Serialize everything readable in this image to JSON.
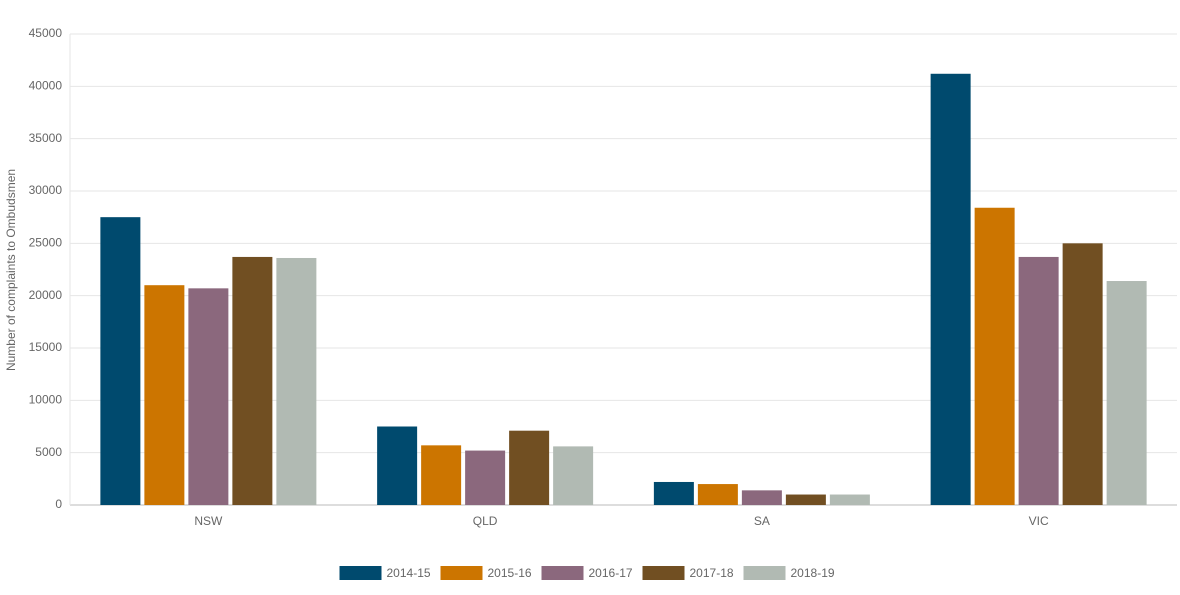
{
  "chart_data": {
    "type": "bar",
    "y_label": "Number of complaints to Ombudsmen",
    "categories": [
      "NSW",
      "QLD",
      "SA",
      "VIC"
    ],
    "series": [
      {
        "name": "2014-15",
        "color": "#004a6e",
        "values": [
          27500,
          7500,
          2200,
          41200
        ]
      },
      {
        "name": "2015-16",
        "color": "#cc7500",
        "values": [
          21000,
          5700,
          2000,
          28400
        ]
      },
      {
        "name": "2016-17",
        "color": "#8b687d",
        "values": [
          20700,
          5200,
          1400,
          23700
        ]
      },
      {
        "name": "2017-18",
        "color": "#714f22",
        "values": [
          23700,
          7100,
          1000,
          25000
        ]
      },
      {
        "name": "2018-19",
        "color": "#b1bab3",
        "values": [
          23600,
          5600,
          1000,
          21400
        ]
      }
    ],
    "ylim": [
      0,
      45000
    ],
    "yticks": [
      0,
      5000,
      10000,
      15000,
      20000,
      25000,
      30000,
      35000,
      40000,
      45000
    ],
    "grid": true
  }
}
